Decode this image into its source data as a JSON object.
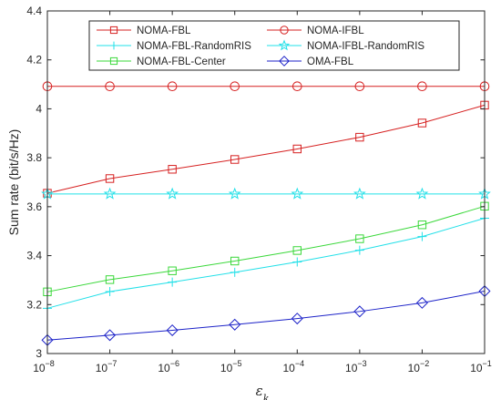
{
  "chart_data": {
    "type": "line",
    "xlabel": "ε",
    "xlabel_sub": "k",
    "ylabel": "Sum rate (bit/s/Hz)",
    "x_scale": "log",
    "x": [
      1e-08,
      1e-07,
      1e-06,
      1e-05,
      0.0001,
      0.001,
      0.01,
      0.1
    ],
    "x_tick_base": "10",
    "x_tick_exponents": [
      "−8",
      "−7",
      "−6",
      "−5",
      "−4",
      "−3",
      "−2",
      "−1"
    ],
    "ylim": [
      3.0,
      4.4
    ],
    "y_ticks": [
      "3",
      "3.2",
      "3.4",
      "3.6",
      "3.8",
      "4",
      "4.2",
      "4.4"
    ],
    "grid": false,
    "legend_position": "top",
    "series": [
      {
        "name": "NOMA-FBL",
        "color": "#d62020",
        "marker": "square",
        "values": [
          3.655,
          3.715,
          3.753,
          3.793,
          3.836,
          3.884,
          3.942,
          4.015
        ]
      },
      {
        "name": "NOMA-IFBL",
        "color": "#d62020",
        "marker": "circle",
        "values": [
          4.092,
          4.092,
          4.092,
          4.092,
          4.092,
          4.092,
          4.092,
          4.092
        ]
      },
      {
        "name": "NOMA-FBL-RandomRIS",
        "color": "#22e0e8",
        "marker": "plus",
        "values": [
          3.185,
          3.253,
          3.292,
          3.332,
          3.374,
          3.422,
          3.478,
          3.553
        ]
      },
      {
        "name": "NOMA-IFBL-RandomRIS",
        "color": "#22e0e8",
        "marker": "star",
        "values": [
          3.652,
          3.652,
          3.652,
          3.652,
          3.652,
          3.652,
          3.652,
          3.652
        ]
      },
      {
        "name": "NOMA-FBL-Center",
        "color": "#3ad83a",
        "marker": "square",
        "values": [
          3.252,
          3.302,
          3.338,
          3.378,
          3.421,
          3.469,
          3.526,
          3.602
        ]
      },
      {
        "name": "OMA-FBL",
        "color": "#1c22c8",
        "marker": "diamond",
        "values": [
          3.055,
          3.075,
          3.095,
          3.118,
          3.143,
          3.172,
          3.207,
          3.255
        ]
      }
    ]
  }
}
